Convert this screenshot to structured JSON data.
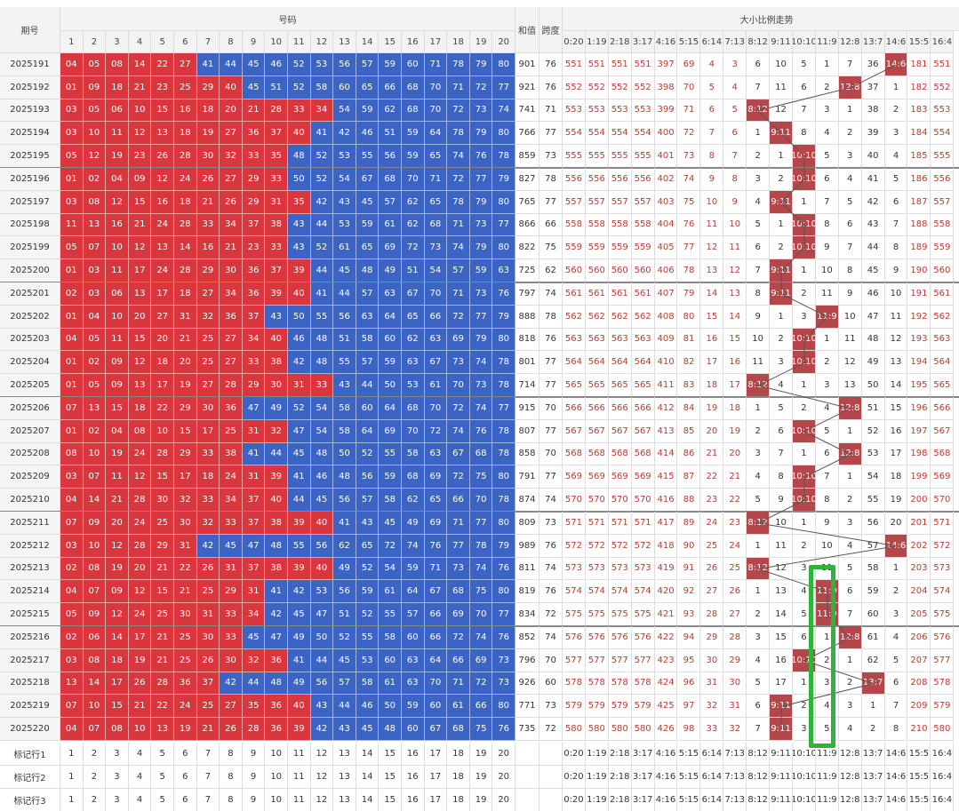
{
  "header": {
    "issue": "期号",
    "numbers": "号码",
    "sum": "和值",
    "span": "跨度",
    "trend": "大小比例走势",
    "number_cols": [
      1,
      2,
      3,
      4,
      5,
      6,
      7,
      8,
      9,
      10,
      11,
      12,
      13,
      14,
      15,
      16,
      17,
      18,
      19,
      20
    ],
    "ratio_cols": [
      "0:20",
      "1:19",
      "2:18",
      "3:17",
      "4:16",
      "5:15",
      "6:14",
      "7:13",
      "8:12",
      "9:11",
      "10:10",
      "11:9",
      "12:8",
      "13:7",
      "14:6",
      "15:5",
      "16:4"
    ]
  },
  "rows": [
    {
      "issue": "2025191",
      "numbers": [
        "04",
        "05",
        "08",
        "14",
        "22",
        "27",
        "41",
        "44",
        "45",
        "46",
        "52",
        "53",
        "56",
        "57",
        "59",
        "60",
        "71",
        "78",
        "79",
        "80"
      ],
      "sum": 901,
      "span": 76,
      "ratio": [
        551,
        551,
        551,
        551,
        397,
        69,
        4,
        3,
        6,
        10,
        5,
        1,
        7,
        36,
        "14:6",
        181,
        551
      ]
    },
    {
      "issue": "2025192",
      "numbers": [
        "01",
        "09",
        "18",
        "21",
        "23",
        "25",
        "29",
        "40",
        "45",
        "51",
        "52",
        "58",
        "60",
        "65",
        "66",
        "68",
        "70",
        "71",
        "72",
        "77"
      ],
      "sum": 921,
      "span": 76,
      "ratio": [
        552,
        552,
        552,
        552,
        398,
        70,
        5,
        4,
        7,
        11,
        6,
        2,
        "12:8",
        37,
        1,
        182,
        552
      ]
    },
    {
      "issue": "2025193",
      "numbers": [
        "03",
        "05",
        "06",
        "10",
        "15",
        "16",
        "18",
        "20",
        "21",
        "28",
        "33",
        "34",
        "54",
        "59",
        "62",
        "68",
        "70",
        "72",
        "73",
        "74"
      ],
      "sum": 741,
      "span": 71,
      "ratio": [
        553,
        553,
        553,
        553,
        399,
        71,
        6,
        5,
        "8:12",
        12,
        7,
        3,
        1,
        38,
        2,
        183,
        553
      ]
    },
    {
      "issue": "2025194",
      "numbers": [
        "03",
        "10",
        "11",
        "12",
        "13",
        "18",
        "19",
        "27",
        "36",
        "37",
        "40",
        "41",
        "42",
        "46",
        "51",
        "59",
        "64",
        "78",
        "79",
        "80"
      ],
      "sum": 766,
      "span": 77,
      "ratio": [
        554,
        554,
        554,
        554,
        400,
        72,
        7,
        6,
        1,
        "9:11",
        8,
        4,
        2,
        39,
        3,
        184,
        554
      ]
    },
    {
      "issue": "2025195",
      "numbers": [
        "05",
        "12",
        "19",
        "23",
        "26",
        "28",
        "30",
        "32",
        "33",
        "35",
        "48",
        "52",
        "53",
        "55",
        "56",
        "59",
        "65",
        "74",
        "76",
        "78"
      ],
      "sum": 859,
      "span": 73,
      "ratio": [
        555,
        555,
        555,
        555,
        401,
        73,
        8,
        7,
        2,
        1,
        "10:10",
        5,
        3,
        40,
        4,
        185,
        555
      ]
    },
    {
      "issue": "2025196",
      "numbers": [
        "01",
        "02",
        "04",
        "09",
        "12",
        "24",
        "26",
        "27",
        "29",
        "33",
        "50",
        "52",
        "54",
        "67",
        "68",
        "70",
        "71",
        "72",
        "77",
        "79"
      ],
      "sum": 827,
      "span": 78,
      "ratio": [
        556,
        556,
        556,
        556,
        402,
        74,
        9,
        8,
        3,
        2,
        "10:10",
        6,
        4,
        41,
        5,
        186,
        556
      ]
    },
    {
      "issue": "2025197",
      "numbers": [
        "03",
        "08",
        "12",
        "15",
        "16",
        "18",
        "21",
        "26",
        "29",
        "31",
        "35",
        "42",
        "43",
        "45",
        "57",
        "62",
        "65",
        "78",
        "79",
        "80"
      ],
      "sum": 765,
      "span": 77,
      "ratio": [
        557,
        557,
        557,
        557,
        403,
        75,
        10,
        9,
        4,
        "9:11",
        1,
        7,
        5,
        42,
        6,
        187,
        557
      ]
    },
    {
      "issue": "2025198",
      "numbers": [
        "11",
        "13",
        "16",
        "21",
        "24",
        "28",
        "33",
        "34",
        "37",
        "38",
        "43",
        "44",
        "53",
        "59",
        "61",
        "62",
        "68",
        "71",
        "73",
        "77"
      ],
      "sum": 866,
      "span": 66,
      "ratio": [
        558,
        558,
        558,
        558,
        404,
        76,
        11,
        10,
        5,
        1,
        "10:10",
        8,
        6,
        43,
        7,
        188,
        558
      ]
    },
    {
      "issue": "2025199",
      "numbers": [
        "05",
        "07",
        "10",
        "12",
        "13",
        "14",
        "16",
        "21",
        "23",
        "33",
        "43",
        "52",
        "61",
        "65",
        "69",
        "72",
        "73",
        "74",
        "79",
        "80"
      ],
      "sum": 822,
      "span": 75,
      "ratio": [
        559,
        559,
        559,
        559,
        405,
        77,
        12,
        11,
        6,
        2,
        "10:10",
        9,
        7,
        44,
        8,
        189,
        559
      ]
    },
    {
      "issue": "2025200",
      "numbers": [
        "01",
        "03",
        "11",
        "17",
        "24",
        "28",
        "29",
        "30",
        "36",
        "37",
        "39",
        "44",
        "45",
        "48",
        "49",
        "51",
        "54",
        "57",
        "59",
        "63"
      ],
      "sum": 725,
      "span": 62,
      "ratio": [
        560,
        560,
        560,
        560,
        406,
        78,
        13,
        12,
        7,
        "9:11",
        1,
        10,
        8,
        45,
        9,
        190,
        560
      ]
    },
    {
      "issue": "2025201",
      "numbers": [
        "02",
        "03",
        "06",
        "13",
        "17",
        "18",
        "27",
        "34",
        "36",
        "39",
        "40",
        "41",
        "44",
        "57",
        "63",
        "67",
        "70",
        "71",
        "73",
        "76"
      ],
      "sum": 797,
      "span": 74,
      "ratio": [
        561,
        561,
        561,
        561,
        407,
        79,
        14,
        13,
        8,
        "9:11",
        2,
        11,
        9,
        46,
        10,
        191,
        561
      ]
    },
    {
      "issue": "2025202",
      "numbers": [
        "01",
        "04",
        "10",
        "20",
        "27",
        "31",
        "32",
        "36",
        "37",
        "43",
        "50",
        "55",
        "56",
        "63",
        "64",
        "65",
        "66",
        "72",
        "77",
        "79"
      ],
      "sum": 888,
      "span": 78,
      "ratio": [
        562,
        562,
        562,
        562,
        408,
        80,
        15,
        14,
        9,
        1,
        3,
        "11:9",
        10,
        47,
        11,
        192,
        562
      ]
    },
    {
      "issue": "2025203",
      "numbers": [
        "04",
        "05",
        "11",
        "15",
        "20",
        "21",
        "25",
        "27",
        "34",
        "40",
        "46",
        "48",
        "51",
        "58",
        "60",
        "62",
        "63",
        "69",
        "79",
        "80"
      ],
      "sum": 818,
      "span": 76,
      "ratio": [
        563,
        563,
        563,
        563,
        409,
        81,
        16,
        15,
        10,
        2,
        "10:10",
        1,
        11,
        48,
        12,
        193,
        563
      ]
    },
    {
      "issue": "2025204",
      "numbers": [
        "01",
        "02",
        "09",
        "12",
        "18",
        "20",
        "25",
        "27",
        "33",
        "38",
        "42",
        "48",
        "55",
        "57",
        "59",
        "63",
        "67",
        "73",
        "74",
        "78"
      ],
      "sum": 801,
      "span": 77,
      "ratio": [
        564,
        564,
        564,
        564,
        410,
        82,
        17,
        16,
        11,
        3,
        "10:10",
        2,
        12,
        49,
        13,
        194,
        564
      ]
    },
    {
      "issue": "2025205",
      "numbers": [
        "01",
        "05",
        "09",
        "13",
        "17",
        "19",
        "27",
        "28",
        "29",
        "30",
        "31",
        "33",
        "43",
        "44",
        "50",
        "53",
        "61",
        "70",
        "73",
        "78"
      ],
      "sum": 714,
      "span": 77,
      "ratio": [
        565,
        565,
        565,
        565,
        411,
        83,
        18,
        17,
        "8:12",
        4,
        1,
        3,
        13,
        50,
        14,
        195,
        565
      ]
    },
    {
      "issue": "2025206",
      "numbers": [
        "07",
        "13",
        "15",
        "18",
        "22",
        "29",
        "30",
        "36",
        "47",
        "49",
        "52",
        "54",
        "58",
        "60",
        "64",
        "68",
        "70",
        "72",
        "74",
        "77"
      ],
      "sum": 915,
      "span": 70,
      "ratio": [
        566,
        566,
        566,
        566,
        412,
        84,
        19,
        18,
        1,
        5,
        2,
        4,
        "12:8",
        51,
        15,
        196,
        566
      ]
    },
    {
      "issue": "2025207",
      "numbers": [
        "01",
        "02",
        "04",
        "08",
        "10",
        "15",
        "17",
        "25",
        "31",
        "32",
        "47",
        "54",
        "58",
        "64",
        "69",
        "70",
        "72",
        "74",
        "76",
        "78"
      ],
      "sum": 807,
      "span": 77,
      "ratio": [
        567,
        567,
        567,
        567,
        413,
        85,
        20,
        19,
        2,
        6,
        "10:10",
        5,
        1,
        52,
        16,
        197,
        567
      ]
    },
    {
      "issue": "2025208",
      "numbers": [
        "08",
        "10",
        "19",
        "24",
        "28",
        "29",
        "33",
        "38",
        "41",
        "44",
        "45",
        "48",
        "50",
        "52",
        "55",
        "58",
        "63",
        "67",
        "68",
        "78"
      ],
      "sum": 858,
      "span": 70,
      "ratio": [
        568,
        568,
        568,
        568,
        414,
        86,
        21,
        20,
        3,
        7,
        1,
        6,
        "12:8",
        53,
        17,
        198,
        568
      ]
    },
    {
      "issue": "2025209",
      "numbers": [
        "03",
        "07",
        "11",
        "12",
        "15",
        "17",
        "18",
        "24",
        "31",
        "39",
        "41",
        "46",
        "48",
        "56",
        "59",
        "68",
        "69",
        "72",
        "75",
        "80"
      ],
      "sum": 791,
      "span": 77,
      "ratio": [
        569,
        569,
        569,
        569,
        415,
        87,
        22,
        21,
        4,
        8,
        "10:10",
        7,
        1,
        54,
        18,
        199,
        569
      ]
    },
    {
      "issue": "2025210",
      "numbers": [
        "04",
        "14",
        "21",
        "28",
        "30",
        "32",
        "33",
        "34",
        "37",
        "40",
        "44",
        "45",
        "56",
        "57",
        "58",
        "62",
        "65",
        "66",
        "70",
        "78"
      ],
      "sum": 874,
      "span": 74,
      "ratio": [
        570,
        570,
        570,
        570,
        416,
        88,
        23,
        22,
        5,
        9,
        "10:10",
        8,
        2,
        55,
        19,
        200,
        570
      ]
    },
    {
      "issue": "2025211",
      "numbers": [
        "07",
        "09",
        "20",
        "24",
        "25",
        "30",
        "32",
        "33",
        "37",
        "38",
        "39",
        "40",
        "41",
        "43",
        "45",
        "49",
        "69",
        "71",
        "77",
        "80"
      ],
      "sum": 809,
      "span": 73,
      "ratio": [
        571,
        571,
        571,
        571,
        417,
        89,
        24,
        23,
        "8:12",
        10,
        1,
        9,
        3,
        56,
        20,
        201,
        571
      ]
    },
    {
      "issue": "2025212",
      "numbers": [
        "03",
        "10",
        "12",
        "28",
        "29",
        "31",
        "42",
        "45",
        "47",
        "48",
        "55",
        "56",
        "62",
        "65",
        "72",
        "74",
        "76",
        "77",
        "78",
        "79"
      ],
      "sum": 989,
      "span": 76,
      "ratio": [
        572,
        572,
        572,
        572,
        418,
        90,
        25,
        24,
        1,
        11,
        2,
        10,
        4,
        57,
        "14:6",
        202,
        572
      ]
    },
    {
      "issue": "2025213",
      "numbers": [
        "02",
        "08",
        "19",
        "20",
        "21",
        "22",
        "26",
        "31",
        "37",
        "38",
        "39",
        "40",
        "49",
        "52",
        "54",
        "59",
        "71",
        "73",
        "74",
        "76"
      ],
      "sum": 811,
      "span": 74,
      "ratio": [
        573,
        573,
        573,
        573,
        419,
        91,
        26,
        25,
        "8:12",
        12,
        3,
        11,
        5,
        58,
        1,
        203,
        573
      ]
    },
    {
      "issue": "2025214",
      "numbers": [
        "04",
        "07",
        "09",
        "12",
        "15",
        "21",
        "25",
        "29",
        "31",
        "41",
        "42",
        "53",
        "56",
        "59",
        "61",
        "64",
        "67",
        "68",
        "75",
        "80"
      ],
      "sum": 819,
      "span": 76,
      "ratio": [
        574,
        574,
        574,
        574,
        420,
        92,
        27,
        26,
        1,
        13,
        4,
        "11:9",
        6,
        59,
        2,
        204,
        574
      ]
    },
    {
      "issue": "2025215",
      "numbers": [
        "05",
        "09",
        "12",
        "24",
        "25",
        "30",
        "31",
        "33",
        "34",
        "42",
        "45",
        "47",
        "51",
        "52",
        "55",
        "57",
        "66",
        "69",
        "70",
        "77"
      ],
      "sum": 834,
      "span": 72,
      "ratio": [
        575,
        575,
        575,
        575,
        421,
        93,
        28,
        27,
        2,
        14,
        5,
        "11:9",
        7,
        60,
        3,
        205,
        575
      ]
    },
    {
      "issue": "2025216",
      "numbers": [
        "02",
        "06",
        "14",
        "17",
        "21",
        "25",
        "30",
        "33",
        "45",
        "47",
        "49",
        "50",
        "52",
        "55",
        "58",
        "60",
        "66",
        "72",
        "74",
        "76"
      ],
      "sum": 852,
      "span": 74,
      "ratio": [
        576,
        576,
        576,
        576,
        422,
        94,
        29,
        28,
        3,
        15,
        6,
        1,
        "12:8",
        61,
        4,
        206,
        576
      ]
    },
    {
      "issue": "2025217",
      "numbers": [
        "03",
        "08",
        "18",
        "19",
        "21",
        "25",
        "26",
        "30",
        "32",
        "36",
        "41",
        "44",
        "45",
        "53",
        "60",
        "63",
        "64",
        "66",
        "69",
        "73"
      ],
      "sum": 796,
      "span": 70,
      "ratio": [
        577,
        577,
        577,
        577,
        423,
        95,
        30,
        29,
        4,
        16,
        "10:10",
        2,
        1,
        62,
        5,
        207,
        577
      ]
    },
    {
      "issue": "2025218",
      "numbers": [
        "13",
        "14",
        "17",
        "26",
        "28",
        "36",
        "37",
        "42",
        "44",
        "48",
        "49",
        "56",
        "57",
        "58",
        "61",
        "63",
        "70",
        "71",
        "72",
        "73"
      ],
      "sum": 926,
      "span": 60,
      "ratio": [
        578,
        578,
        578,
        578,
        424,
        96,
        31,
        30,
        5,
        17,
        1,
        3,
        2,
        "13:7",
        6,
        208,
        578
      ]
    },
    {
      "issue": "2025219",
      "numbers": [
        "07",
        "10",
        "15",
        "21",
        "22",
        "24",
        "25",
        "27",
        "35",
        "36",
        "40",
        "43",
        "44",
        "46",
        "50",
        "59",
        "60",
        "61",
        "66",
        "80"
      ],
      "sum": 771,
      "span": 73,
      "ratio": [
        579,
        579,
        579,
        579,
        425,
        97,
        32,
        31,
        6,
        "9:11",
        2,
        4,
        3,
        1,
        7,
        209,
        579
      ]
    },
    {
      "issue": "2025220",
      "numbers": [
        "04",
        "07",
        "08",
        "10",
        "13",
        "19",
        "21",
        "26",
        "28",
        "36",
        "39",
        "42",
        "43",
        "45",
        "48",
        "60",
        "67",
        "68",
        "75",
        "76"
      ],
      "sum": 735,
      "span": 72,
      "ratio": [
        580,
        580,
        580,
        580,
        426,
        98,
        33,
        32,
        7,
        "9:11",
        3,
        5,
        4,
        2,
        8,
        210,
        580
      ]
    }
  ],
  "marker_rows": [
    "标记行1",
    "标记行2",
    "标记行3"
  ]
}
